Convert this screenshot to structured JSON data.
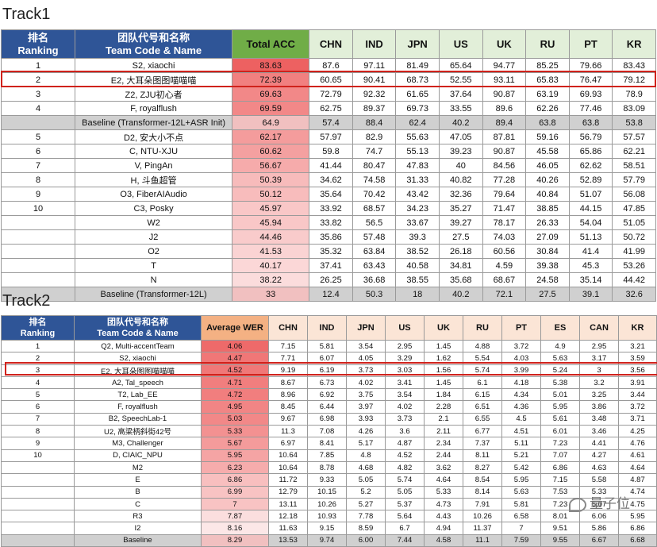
{
  "track1": {
    "title": "Track1",
    "headers": {
      "rank": "排名\nRanking",
      "team": "团队代号和名称\nTeam Code & Name",
      "total": "Total ACC",
      "langs": [
        "CHN",
        "IND",
        "JPN",
        "US",
        "UK",
        "RU",
        "PT",
        "KR"
      ]
    },
    "rows": [
      {
        "rank": "1",
        "team": "S2, xiaochi",
        "total": "83.63",
        "vals": [
          "87.6",
          "97.11",
          "81.49",
          "65.64",
          "94.77",
          "85.25",
          "79.66",
          "83.43"
        ]
      },
      {
        "rank": "2",
        "team": "E2, 大耳朵图图喵喵喵",
        "total": "72.39",
        "vals": [
          "60.65",
          "90.41",
          "68.73",
          "52.55",
          "93.11",
          "65.83",
          "76.47",
          "79.12"
        ]
      },
      {
        "rank": "3",
        "team": "Z2, ZJU初心者",
        "total": "69.63",
        "vals": [
          "72.79",
          "92.32",
          "61.65",
          "37.64",
          "90.87",
          "63.19",
          "69.93",
          "78.9"
        ]
      },
      {
        "rank": "4",
        "team": "F, royalflush",
        "total": "69.59",
        "vals": [
          "62.75",
          "89.37",
          "69.73",
          "33.55",
          "89.6",
          "62.26",
          "77.46",
          "83.09"
        ]
      },
      {
        "rank": "",
        "team": "Baseline (Transformer-12L+ASR Init)",
        "total": "64.9",
        "vals": [
          "57.4",
          "88.4",
          "62.4",
          "40.2",
          "89.4",
          "63.8",
          "63.8",
          "53.8"
        ],
        "baseline": true
      },
      {
        "rank": "5",
        "team": "D2, 安大小不点",
        "total": "62.17",
        "vals": [
          "57.97",
          "82.9",
          "55.63",
          "47.05",
          "87.81",
          "59.16",
          "56.79",
          "57.57"
        ]
      },
      {
        "rank": "6",
        "team": "C, NTU-XJU",
        "total": "60.62",
        "vals": [
          "59.8",
          "74.7",
          "55.13",
          "39.23",
          "90.87",
          "45.58",
          "65.86",
          "62.21"
        ]
      },
      {
        "rank": "7",
        "team": "V, PingAn",
        "total": "56.67",
        "vals": [
          "41.44",
          "80.47",
          "47.83",
          "40",
          "84.56",
          "46.05",
          "62.62",
          "58.51"
        ]
      },
      {
        "rank": "8",
        "team": "H, 斗鱼超管",
        "total": "50.39",
        "vals": [
          "34.62",
          "74.58",
          "31.33",
          "40.82",
          "77.28",
          "40.26",
          "52.89",
          "57.79"
        ]
      },
      {
        "rank": "9",
        "team": "O3, FiberAIAudio",
        "total": "50.12",
        "vals": [
          "35.64",
          "70.42",
          "43.42",
          "32.36",
          "79.64",
          "40.84",
          "51.07",
          "56.08"
        ]
      },
      {
        "rank": "10",
        "team": "C3, Posky",
        "total": "45.97",
        "vals": [
          "33.92",
          "68.57",
          "34.23",
          "35.27",
          "71.47",
          "38.85",
          "44.15",
          "47.85"
        ]
      },
      {
        "rank": "",
        "team": "W2",
        "total": "45.94",
        "vals": [
          "33.82",
          "56.5",
          "33.67",
          "39.27",
          "78.17",
          "26.33",
          "54.04",
          "51.05"
        ]
      },
      {
        "rank": "",
        "team": "J2",
        "total": "44.46",
        "vals": [
          "35.86",
          "57.48",
          "39.3",
          "27.5",
          "74.03",
          "27.09",
          "51.13",
          "50.72"
        ]
      },
      {
        "rank": "",
        "team": "O2",
        "total": "41.53",
        "vals": [
          "35.32",
          "63.84",
          "38.52",
          "26.18",
          "60.56",
          "30.84",
          "41.4",
          "41.99"
        ]
      },
      {
        "rank": "",
        "team": "T",
        "total": "40.17",
        "vals": [
          "37.41",
          "63.43",
          "40.58",
          "34.81",
          "4.59",
          "39.38",
          "45.3",
          "53.26"
        ]
      },
      {
        "rank": "",
        "team": "N",
        "total": "38.22",
        "vals": [
          "26.25",
          "36.68",
          "38.55",
          "35.68",
          "68.67",
          "24.58",
          "35.14",
          "44.42"
        ]
      },
      {
        "rank": "",
        "team": "Baseline (Transformer-12L)",
        "total": "33",
        "vals": [
          "12.4",
          "50.3",
          "18",
          "40.2",
          "72.1",
          "27.5",
          "39.1",
          "32.6"
        ],
        "baseline": true
      }
    ]
  },
  "track2": {
    "title": "Track2",
    "headers": {
      "rank": "排名\nRanking",
      "team": "团队代号和名称\nTeam Code & Name",
      "total": "Average WER",
      "langs": [
        "CHN",
        "IND",
        "JPN",
        "US",
        "UK",
        "RU",
        "PT",
        "ES",
        "CAN",
        "KR"
      ]
    },
    "rows": [
      {
        "rank": "1",
        "team": "Q2, Multi-accentTeam",
        "total": "4.06",
        "vals": [
          "7.15",
          "5.81",
          "3.54",
          "2.95",
          "1.45",
          "4.88",
          "3.72",
          "4.9",
          "2.95",
          "3.21"
        ]
      },
      {
        "rank": "2",
        "team": "S2, xiaochi",
        "total": "4.47",
        "vals": [
          "7.71",
          "6.07",
          "4.05",
          "3.29",
          "1.62",
          "5.54",
          "4.03",
          "5.63",
          "3.17",
          "3.59"
        ]
      },
      {
        "rank": "3",
        "team": "E2, 大耳朵图图喵喵喵",
        "total": "4.52",
        "vals": [
          "9.19",
          "6.19",
          "3.73",
          "3.03",
          "1.56",
          "5.74",
          "3.99",
          "5.24",
          "3",
          "3.56"
        ]
      },
      {
        "rank": "4",
        "team": "A2, Tal_speech",
        "total": "4.71",
        "vals": [
          "8.67",
          "6.73",
          "4.02",
          "3.41",
          "1.45",
          "6.1",
          "4.18",
          "5.38",
          "3.2",
          "3.91"
        ]
      },
      {
        "rank": "5",
        "team": "T2, Lab_EE",
        "total": "4.72",
        "vals": [
          "8.96",
          "6.92",
          "3.75",
          "3.54",
          "1.84",
          "6.15",
          "4.34",
          "5.01",
          "3.25",
          "3.44"
        ]
      },
      {
        "rank": "6",
        "team": "F, royalflush",
        "total": "4.95",
        "vals": [
          "8.45",
          "6.44",
          "3.97",
          "4.02",
          "2.28",
          "6.51",
          "4.36",
          "5.95",
          "3.86",
          "3.72"
        ]
      },
      {
        "rank": "7",
        "team": "B2, SpeechLab-1",
        "total": "5.03",
        "vals": [
          "9.67",
          "6.98",
          "3.93",
          "3.73",
          "2.1",
          "6.55",
          "4.5",
          "5.61",
          "3.48",
          "3.71"
        ]
      },
      {
        "rank": "8",
        "team": "U2, 高梁柄斜街42号",
        "total": "5.33",
        "vals": [
          "11.3",
          "7.08",
          "4.26",
          "3.6",
          "2.11",
          "6.77",
          "4.51",
          "6.01",
          "3.46",
          "4.25"
        ]
      },
      {
        "rank": "9",
        "team": "M3, Challenger",
        "total": "5.67",
        "vals": [
          "6.97",
          "8.41",
          "5.17",
          "4.87",
          "2.34",
          "7.37",
          "5.11",
          "7.23",
          "4.41",
          "4.76"
        ]
      },
      {
        "rank": "10",
        "team": "D, CIAIC_NPU",
        "total": "5.95",
        "vals": [
          "10.64",
          "7.85",
          "4.8",
          "4.52",
          "2.44",
          "8.11",
          "5.21",
          "7.07",
          "4.27",
          "4.61"
        ]
      },
      {
        "rank": "",
        "team": "M2",
        "total": "6.23",
        "vals": [
          "10.64",
          "8.78",
          "4.68",
          "4.82",
          "3.62",
          "8.27",
          "5.42",
          "6.86",
          "4.63",
          "4.64"
        ]
      },
      {
        "rank": "",
        "team": "E",
        "total": "6.86",
        "vals": [
          "11.72",
          "9.33",
          "5.05",
          "5.74",
          "4.64",
          "8.54",
          "5.95",
          "7.15",
          "5.58",
          "4.87"
        ]
      },
      {
        "rank": "",
        "team": "B",
        "total": "6.99",
        "vals": [
          "12.79",
          "10.15",
          "5.2",
          "5.05",
          "5.33",
          "8.14",
          "5.63",
          "7.53",
          "5.33",
          "4.74"
        ]
      },
      {
        "rank": "",
        "team": "C",
        "total": "7",
        "vals": [
          "13.11",
          "10.26",
          "5.27",
          "5.37",
          "4.73",
          "7.91",
          "5.81",
          "7.23",
          "5.07",
          "4.75"
        ]
      },
      {
        "rank": "",
        "team": "R3",
        "total": "7.87",
        "vals": [
          "12.18",
          "10.93",
          "7.78",
          "5.64",
          "4.43",
          "10.26",
          "6.58",
          "8.01",
          "6.06",
          "5.95"
        ]
      },
      {
        "rank": "",
        "team": "I2",
        "total": "8.16",
        "vals": [
          "11.63",
          "9.15",
          "8.59",
          "6.7",
          "4.94",
          "11.37",
          "7",
          "9.51",
          "5.86",
          "6.86"
        ]
      },
      {
        "rank": "",
        "team": "Baseline",
        "total": "8.29",
        "vals": [
          "13.53",
          "9.74",
          "6.00",
          "7.44",
          "4.58",
          "11.1",
          "7.59",
          "9.55",
          "6.67",
          "6.68"
        ],
        "baseline": true
      }
    ]
  },
  "watermark": "量子位",
  "colors": {
    "header_blue": "#2f5597",
    "track1_total_header": "#70ad47",
    "track1_lang_header": "#e2efd9",
    "track2_total_header": "#f4b183",
    "track2_lang_header": "#fbe5d6",
    "highlight_box": "#d0221c",
    "baseline_row": "#d0d0d0"
  }
}
